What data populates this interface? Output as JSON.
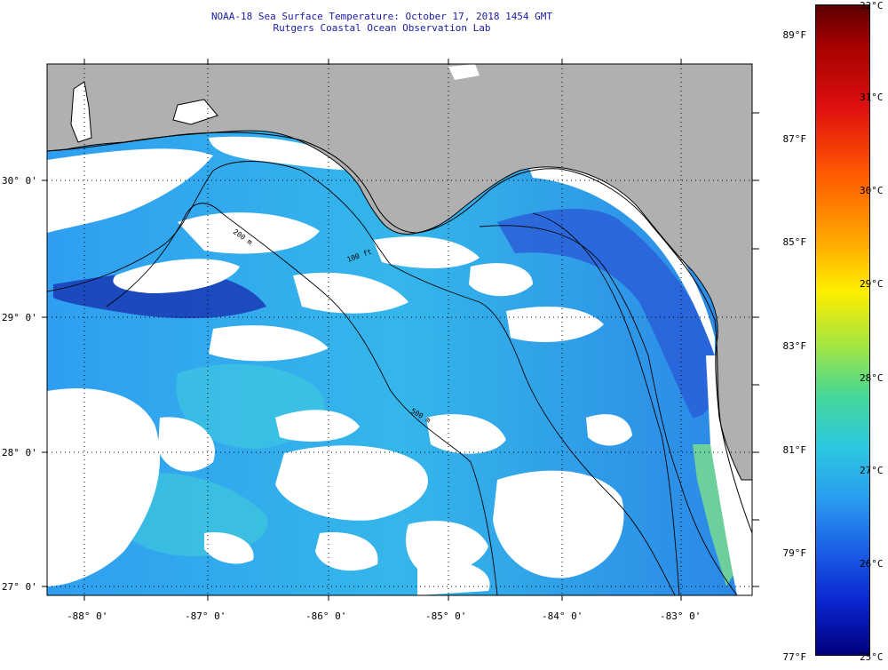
{
  "header": {
    "title": "NOAA-18 Sea Surface Temperature:  October 17, 2018 1454 GMT",
    "subtitle": "Rutgers Coastal Ocean Observation Lab"
  },
  "map": {
    "lon_labels": [
      "-88° 0'",
      "-87° 0'",
      "-86° 0'",
      "-85° 0'",
      "-84° 0'",
      "-83° 0'"
    ],
    "lat_labels": [
      "30° 0'",
      "29° 0'",
      "28° 0'",
      "27° 0'"
    ],
    "isobath_labels": [
      "200 m",
      "100 ft",
      "500 m"
    ],
    "colors": {
      "land": "#b0b0b0",
      "cloud": "#ffffff",
      "sst_low": "#0a1f9e",
      "sst_mid": "#2ea6f0",
      "sst_high": "#3cd6d6"
    }
  },
  "colorbar": {
    "fahrenheit_labels": [
      "89°F",
      "87°F",
      "85°F",
      "83°F",
      "81°F",
      "79°F",
      "77°F"
    ],
    "celsius_labels": [
      "32°C",
      "31°C",
      "30°C",
      "29°C",
      "28°C",
      "27°C",
      "26°C",
      "25°C"
    ],
    "range_c": [
      25,
      32
    ],
    "range_f": [
      77,
      89.6
    ]
  }
}
